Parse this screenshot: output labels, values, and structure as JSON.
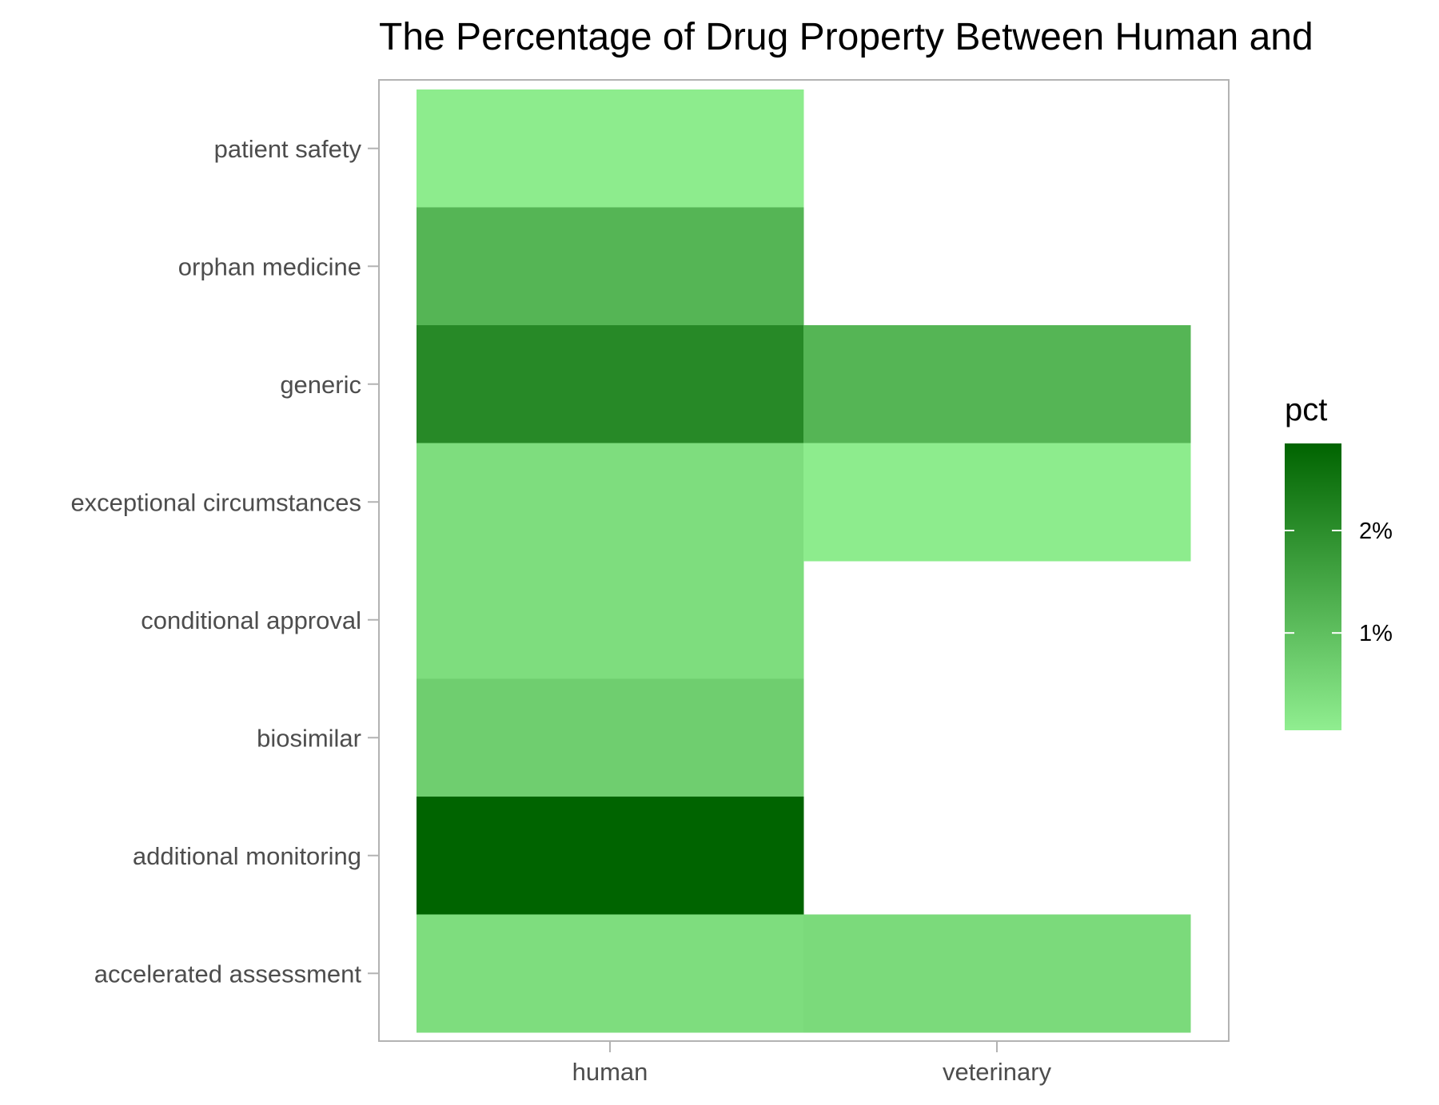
{
  "chart_data": {
    "type": "heatmap",
    "title": "The Percentage of Drug Property Between Human and",
    "xlabel": "",
    "ylabel": "",
    "x_categories": [
      "human",
      "veterinary"
    ],
    "y_categories": [
      "accelerated assessment",
      "additional monitoring",
      "biosimilar",
      "conditional approval",
      "exceptional circumstances",
      "generic",
      "orphan medicine",
      "patient safety"
    ],
    "cells": [
      {
        "x": "human",
        "y": "patient safety",
        "value": 0.1
      },
      {
        "x": "human",
        "y": "orphan medicine",
        "value": 1.2
      },
      {
        "x": "human",
        "y": "generic",
        "value": 2.1
      },
      {
        "x": "human",
        "y": "exceptional circumstances",
        "value": 0.4
      },
      {
        "x": "human",
        "y": "conditional approval",
        "value": 0.4
      },
      {
        "x": "human",
        "y": "biosimilar",
        "value": 0.7
      },
      {
        "x": "human",
        "y": "additional monitoring",
        "value": 2.85
      },
      {
        "x": "human",
        "y": "accelerated assessment",
        "value": 0.4
      },
      {
        "x": "veterinary",
        "y": "generic",
        "value": 1.2
      },
      {
        "x": "veterinary",
        "y": "exceptional circumstances",
        "value": 0.1
      },
      {
        "x": "veterinary",
        "y": "accelerated assessment",
        "value": 0.45
      }
    ],
    "color_scale": {
      "low": "#90ee90",
      "high": "#006400",
      "min": 0.05,
      "max": 2.85
    },
    "legend": {
      "title": "pct",
      "placement": "right",
      "breaks": [
        {
          "value": 1,
          "label": "1%"
        },
        {
          "value": 2,
          "label": "2%"
        }
      ]
    },
    "grid": false
  }
}
